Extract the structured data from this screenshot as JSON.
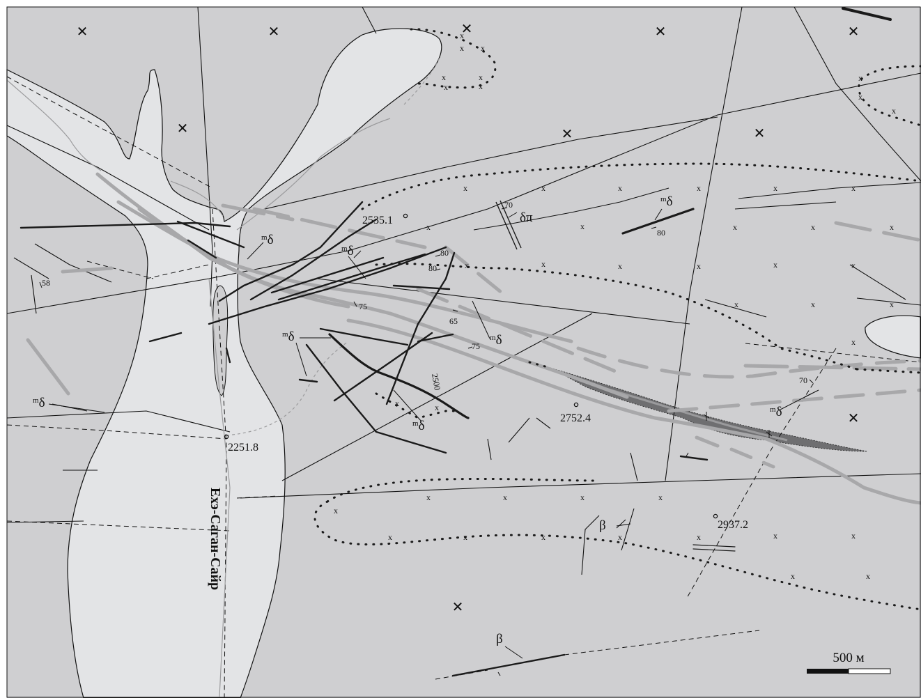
{
  "colors": {
    "host_rock_fill": "#cfcfd1",
    "valley_fill": "#e3e4e6",
    "ore_body_fill": "#6f6f71",
    "mafic_dyke": "#1a1a1a",
    "light_dyke": "#a8a8aa",
    "fault": "#111111"
  },
  "elevations": [
    {
      "id": "p1",
      "label": "2535.1"
    },
    {
      "id": "p2",
      "label": "2752.4"
    },
    {
      "id": "p3",
      "label": "2251.8"
    },
    {
      "id": "p4",
      "label": "2937.2"
    }
  ],
  "dip_labels": [
    "58",
    "70",
    "80",
    "80",
    "80",
    "75",
    "65",
    "75",
    "70",
    "2500"
  ],
  "rock_symbols": {
    "diorite_base": "δ",
    "diorite_prefix": "m",
    "diorite_porphyry": "δπ",
    "basalt": "β",
    "granite_mark": "x"
  },
  "river_name": "Ехэ-Саган-Сайр",
  "scale": {
    "label": "500 м"
  }
}
